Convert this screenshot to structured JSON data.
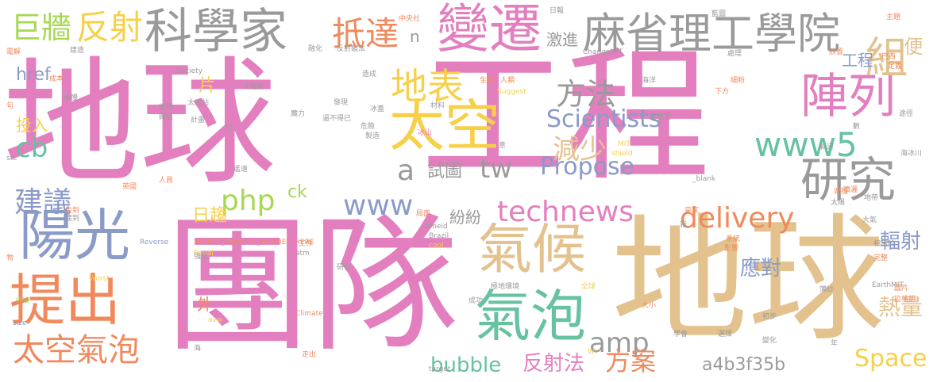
{
  "palette": {
    "pink": "#e37fbf",
    "tan": "#e3c28e",
    "orange": "#f08a5d",
    "yellow": "#f7d04a",
    "blue": "#8a9bc8",
    "green": "#66c2a0",
    "lime": "#a6d854",
    "gray": "#9a9a9a"
  },
  "words": [
    {
      "text": "地球",
      "color": "pink"
    },
    {
      "text": "工程",
      "color": "pink"
    },
    {
      "text": "團隊",
      "color": "pink"
    },
    {
      "text": "地球",
      "color": "tan"
    },
    {
      "text": "科學家",
      "color": "gray"
    },
    {
      "text": "變遷",
      "color": "pink"
    },
    {
      "text": "麻省理工學院",
      "color": "gray"
    },
    {
      "text": "巨牆",
      "color": "lime"
    },
    {
      "text": "反射",
      "color": "yellow"
    },
    {
      "text": "抵達",
      "color": "orange"
    },
    {
      "text": "太空",
      "color": "yellow"
    },
    {
      "text": "陣列",
      "color": "pink"
    },
    {
      "text": "組",
      "color": "tan"
    },
    {
      "text": "地表",
      "color": "yellow"
    },
    {
      "text": "方法",
      "color": "gray"
    },
    {
      "text": "Scientists",
      "color": "blue"
    },
    {
      "text": "陽光",
      "color": "blue"
    },
    {
      "text": "提出",
      "color": "orange"
    },
    {
      "text": "氣候",
      "color": "tan"
    },
    {
      "text": "氣泡",
      "color": "green"
    },
    {
      "text": "研究",
      "color": "gray"
    },
    {
      "text": "www5",
      "color": "green"
    },
    {
      "text": "減少",
      "color": "tan"
    },
    {
      "text": "technews",
      "color": "pink"
    },
    {
      "text": "delivery",
      "color": "orange"
    },
    {
      "text": "php",
      "color": "lime"
    },
    {
      "text": "www",
      "color": "blue"
    },
    {
      "text": "Propose",
      "color": "blue"
    },
    {
      "text": "tw",
      "color": "gray"
    },
    {
      "text": "a",
      "color": "gray"
    },
    {
      "text": "試圖",
      "color": "gray"
    },
    {
      "text": "cb",
      "color": "green"
    },
    {
      "text": "建議",
      "color": "blue"
    },
    {
      "text": "太空氣泡",
      "color": "orange"
    },
    {
      "text": "amp",
      "color": "gray"
    },
    {
      "text": "bubble",
      "color": "green"
    },
    {
      "text": "反射法",
      "color": "pink"
    },
    {
      "text": "方案",
      "color": "orange"
    },
    {
      "text": "Space",
      "color": "yellow"
    },
    {
      "text": "熱量",
      "color": "tan"
    },
    {
      "text": "a4b3f35b",
      "color": "gray"
    },
    {
      "text": "應對",
      "color": "blue"
    },
    {
      "text": "輻射",
      "color": "blue"
    },
    {
      "text": "日趨",
      "color": "yellow"
    },
    {
      "text": "紛紛",
      "color": "gray"
    },
    {
      "text": "ck",
      "color": "lime"
    },
    {
      "text": "href",
      "color": "blue"
    },
    {
      "text": "投入",
      "color": "yellow"
    },
    {
      "text": "片",
      "color": "yellow"
    },
    {
      "text": "激進",
      "color": "gray"
    },
    {
      "text": "n",
      "color": "gray"
    },
    {
      "text": "工程",
      "color": "blue"
    },
    {
      "text": "便",
      "color": "tan"
    },
    {
      "text": "外",
      "color": "orange"
    },
    {
      "text": "日報",
      "color": "gray"
    },
    {
      "text": "中央社",
      "color": "orange"
    },
    {
      "text": "Suggest",
      "color": "yellow"
    },
    {
      "text": "ChangeMIT",
      "color": "gray"
    },
    {
      "text": "Society",
      "color": "gray"
    },
    {
      "text": "Reverse",
      "color": "blue"
    },
    {
      "text": "INSERT_RANDOM_NUMBER_HERE",
      "color": "orange"
    },
    {
      "text": "zoneid",
      "color": "gray"
    },
    {
      "text": "Brazil",
      "color": "gray"
    },
    {
      "text": "atm",
      "color": "gray"
    },
    {
      "text": "Royal",
      "color": "yellow"
    },
    {
      "text": "Worst",
      "color": "yellow"
    },
    {
      "text": "Climate",
      "color": "orange"
    },
    {
      "text": "avw",
      "color": "yellow"
    },
    {
      "text": "EarthMIT",
      "color": "gray"
    },
    {
      "text": "_blank",
      "color": "gray"
    },
    {
      "text": "target",
      "color": "gray"
    },
    {
      "text": "cool",
      "color": "yellow"
    },
    {
      "text": "img",
      "color": "lime"
    },
    {
      "text": "size",
      "color": "blue"
    },
    {
      "text": "src",
      "color": "gray"
    },
    {
      "text": "shield",
      "color": "yellow"
    },
    {
      "text": "MIT",
      "color": "yellow"
    },
    {
      "text": "Wi",
      "color": "yellow"
    },
    {
      "text": "反射鏡法",
      "color": "gray"
    },
    {
      "text": "太陽能",
      "color": "gray"
    },
    {
      "text": "生物",
      "color": "orange"
    },
    {
      "text": "人類",
      "color": "orange"
    },
    {
      "text": "海洋",
      "color": "gray"
    },
    {
      "text": "實驗室",
      "color": "gray"
    },
    {
      "text": "冰山",
      "color": "pink"
    },
    {
      "text": "材料",
      "color": "gray"
    },
    {
      "text": "大氣",
      "color": "gray"
    },
    {
      "text": "軌道",
      "color": "gray"
    },
    {
      "text": "系統",
      "color": "orange"
    },
    {
      "text": "成功",
      "color": "gray"
    },
    {
      "text": "環境",
      "color": "gray"
    },
    {
      "text": "極地",
      "color": "gray"
    },
    {
      "text": "工作",
      "color": "orange"
    },
    {
      "text": "強化",
      "color": "gray"
    },
    {
      "text": "影響",
      "color": "orange"
    },
    {
      "text": "相當於",
      "color": "gray"
    },
    {
      "text": "完整",
      "color": "orange"
    },
    {
      "text": "巴西",
      "color": "orange"
    },
    {
      "text": "定義",
      "color": "orange"
    },
    {
      "text": "放置",
      "color": "orange"
    },
    {
      "text": "主題",
      "color": "orange"
    },
    {
      "text": "電解",
      "color": "orange"
    },
    {
      "text": "下方",
      "color": "orange"
    },
    {
      "text": "走出",
      "color": "orange"
    },
    {
      "text": "全球",
      "color": "yellow"
    },
    {
      "text": "初步",
      "color": "gray"
    },
    {
      "text": "變化",
      "color": "gray"
    },
    {
      "text": "學會",
      "color": "gray"
    },
    {
      "text": "選擇",
      "color": "gray"
    },
    {
      "text": "年",
      "color": "gray"
    },
    {
      "text": "海",
      "color": "gray"
    },
    {
      "text": "皇家",
      "color": "orange"
    },
    {
      "text": "太陽",
      "color": "gray"
    },
    {
      "text": "大小",
      "color": "orange"
    },
    {
      "text": "走到",
      "color": "orange"
    },
    {
      "text": "遮擋",
      "color": "orange"
    },
    {
      "text": "計畫",
      "color": "gray"
    },
    {
      "text": "製造",
      "color": "gray"
    },
    {
      "text": "魔力",
      "color": "gray"
    },
    {
      "text": "分",
      "color": "gray"
    },
    {
      "text": "意",
      "color": "gray"
    },
    {
      "text": "數",
      "color": "gray"
    },
    {
      "text": "句",
      "color": "orange"
    },
    {
      "text": "物",
      "color": "orange"
    },
    {
      "text": "我",
      "color": "gray"
    },
    {
      "text": "面積",
      "color": "gray"
    },
    {
      "text": "瘋狂",
      "color": "gray"
    },
    {
      "text": "英國",
      "color": "orange"
    },
    {
      "text": "人員",
      "color": "orange"
    },
    {
      "text": "建造",
      "color": "gray"
    },
    {
      "text": "成本",
      "color": "orange"
    },
    {
      "text": "發現",
      "color": "gray"
    },
    {
      "text": "局面",
      "color": "orange"
    },
    {
      "text": "危險",
      "color": "gray"
    },
    {
      "text": "處理",
      "color": "gray"
    },
    {
      "text": "圖片",
      "color": "orange"
    },
    {
      "text": "噴灑",
      "color": "orange"
    },
    {
      "text": "薄紗",
      "color": "gray"
    },
    {
      "text": "太空站",
      "color": "gray"
    },
    {
      "text": "海冰川",
      "color": "gray"
    },
    {
      "text": "拉格朗",
      "color": "orange"
    },
    {
      "text": "緩慢",
      "color": "gray"
    },
    {
      "text": "藍圖",
      "color": "gray"
    },
    {
      "text": "達到",
      "color": "gray"
    },
    {
      "text": "造成",
      "color": "gray"
    },
    {
      "text": "遙遠",
      "color": "gray"
    },
    {
      "text": "途徑",
      "color": "gray"
    },
    {
      "text": "研發",
      "color": "gray"
    },
    {
      "text": "冰蓋",
      "color": "gray"
    },
    {
      "text": "融化",
      "color": "gray"
    },
    {
      "text": "逼不得已",
      "color": "gray"
    },
    {
      "text": "細粉",
      "color": "orange"
    },
    {
      "text": "地帶",
      "color": "gray"
    }
  ]
}
